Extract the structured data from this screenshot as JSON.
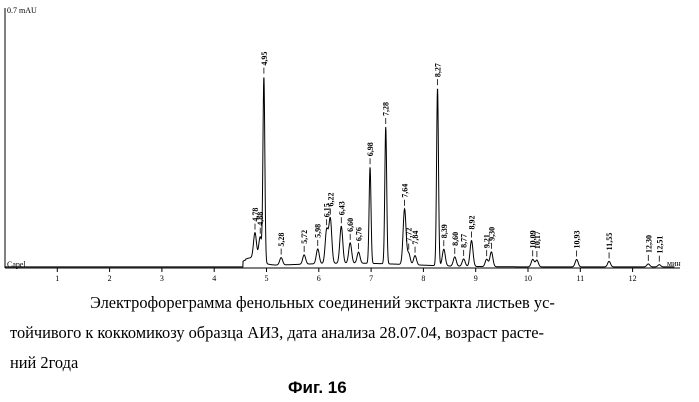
{
  "chart_data": {
    "type": "line",
    "ylabel": "0.7 mAU",
    "baseline_label": "Capel",
    "xunit": "мин",
    "xlim": [
      0,
      12.8
    ],
    "ylim": [
      -0.003,
      0.7
    ],
    "x_ticks": [
      1,
      2,
      3,
      4,
      5,
      6,
      7,
      8,
      9,
      10,
      11,
      12
    ],
    "peaks": [
      {
        "label": "4,78",
        "x": 4.78,
        "y": 0.07
      },
      {
        "label": "4,88",
        "x": 4.88,
        "y": 0.065
      },
      {
        "label": "4,95",
        "x": 4.95,
        "y": 0.5
      },
      {
        "label": "5,28",
        "x": 5.28,
        "y": 0.02
      },
      {
        "label": "5,72",
        "x": 5.72,
        "y": 0.025
      },
      {
        "label": "5,98",
        "x": 5.98,
        "y": 0.04
      },
      {
        "label": "6,15",
        "x": 6.15,
        "y": 0.09
      },
      {
        "label": "6,22",
        "x": 6.22,
        "y": 0.12
      },
      {
        "label": "6,43",
        "x": 6.43,
        "y": 0.1
      },
      {
        "label": "6,60",
        "x": 6.6,
        "y": 0.055
      },
      {
        "label": "6,76",
        "x": 6.76,
        "y": 0.03
      },
      {
        "label": "6,98",
        "x": 6.98,
        "y": 0.26
      },
      {
        "label": "7,28",
        "x": 7.28,
        "y": 0.37
      },
      {
        "label": "7,64",
        "x": 7.64,
        "y": 0.15
      },
      {
        "label": "7,72",
        "x": 7.72,
        "y": 0.03
      },
      {
        "label": "7,84",
        "x": 7.84,
        "y": 0.025
      },
      {
        "label": "8,27",
        "x": 8.27,
        "y": 0.48
      },
      {
        "label": "8,39",
        "x": 8.39,
        "y": 0.045
      },
      {
        "label": "8,60",
        "x": 8.6,
        "y": 0.025
      },
      {
        "label": "8,77",
        "x": 8.77,
        "y": 0.02
      },
      {
        "label": "8,92",
        "x": 8.92,
        "y": 0.07
      },
      {
        "label": "9,21",
        "x": 9.21,
        "y": 0.02
      },
      {
        "label": "9,30",
        "x": 9.3,
        "y": 0.04
      },
      {
        "label": "10,09",
        "x": 10.09,
        "y": 0.02
      },
      {
        "label": "10,17",
        "x": 10.17,
        "y": 0.018
      },
      {
        "label": "10,93",
        "x": 10.93,
        "y": 0.02
      },
      {
        "label": "11,55",
        "x": 11.55,
        "y": 0.015
      },
      {
        "label": "12,30",
        "x": 12.3,
        "y": 0.008
      },
      {
        "label": "12,51",
        "x": 12.51,
        "y": 0.006
      }
    ]
  },
  "caption": {
    "line1": "Электрофореграмма фенольных соединений экстракта листьев ус-",
    "line2": "тойчивого к  коккомикозу образца АИЗ, дата анализа 28.07.04, возраст расте-",
    "line3": "ний 2года"
  },
  "figure_label": "Фиг. 16"
}
